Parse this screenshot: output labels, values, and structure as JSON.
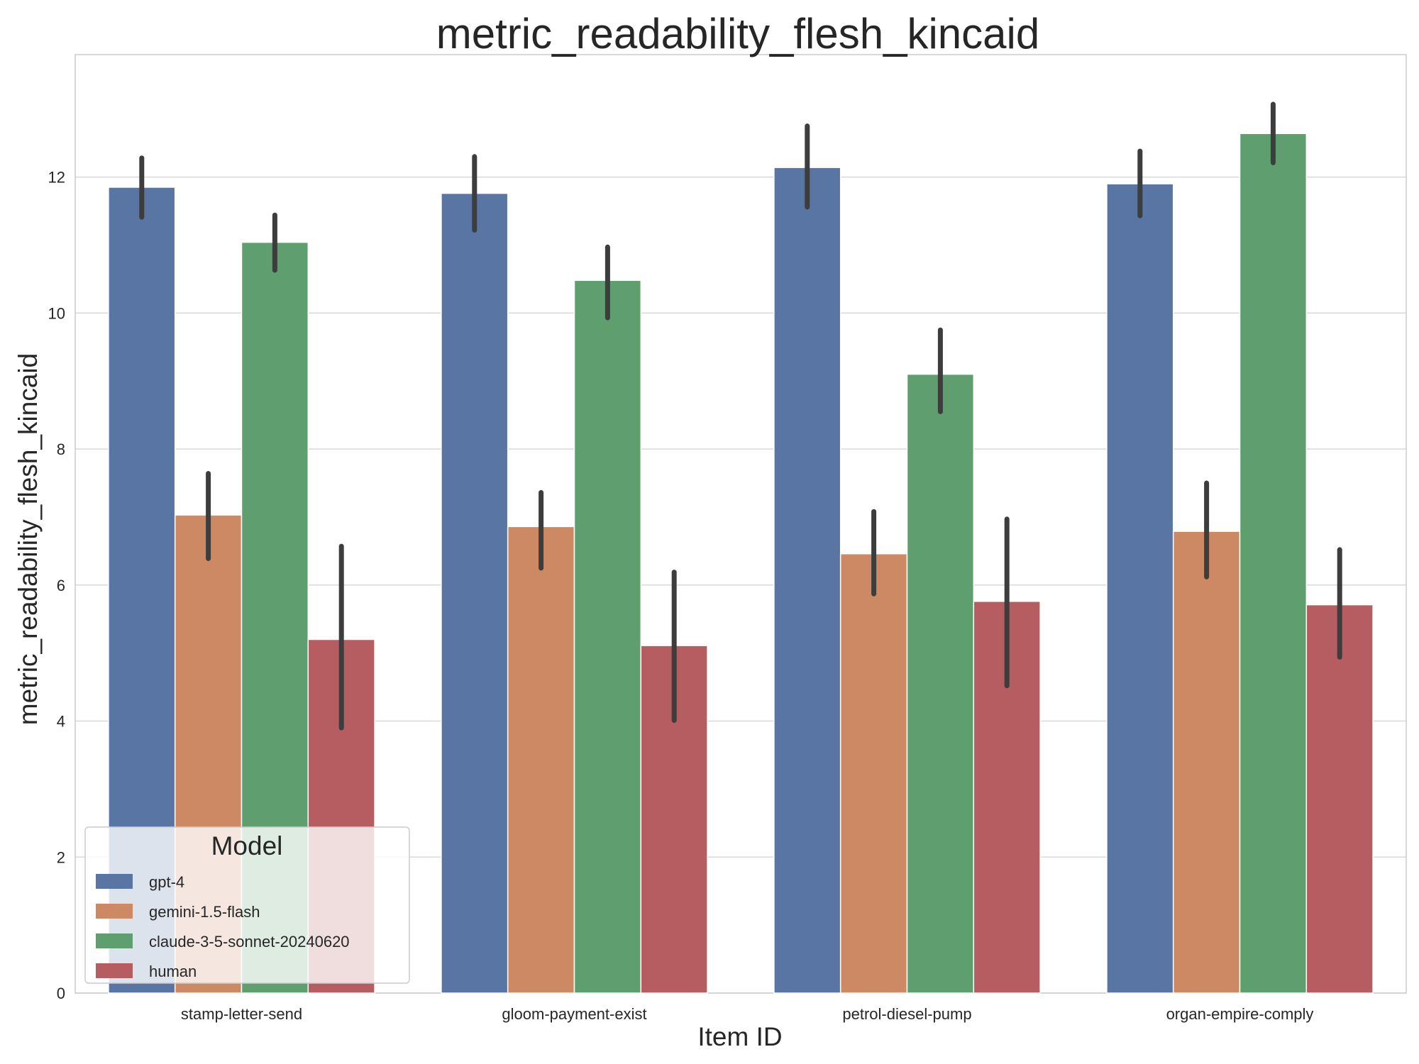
{
  "chart_data": {
    "type": "bar",
    "title": "metric_readability_flesh_kincaid",
    "xlabel": "Item ID",
    "ylabel": "metric_readability_flesh_kincaid",
    "ylim": [
      0,
      13.8
    ],
    "yticks": [
      0,
      2,
      4,
      6,
      8,
      10,
      12
    ],
    "grid": true,
    "categories": [
      "stamp-letter-send",
      "gloom-payment-exist",
      "petrol-diesel-pump",
      "organ-empire-comply"
    ],
    "legend": {
      "title": "Model",
      "placement": "lower-left"
    },
    "series": [
      {
        "name": "gpt-4",
        "color": "#5875a4",
        "values": [
          11.85,
          11.76,
          12.14,
          11.9
        ],
        "ci": [
          [
            11.41,
            12.28
          ],
          [
            11.22,
            12.3
          ],
          [
            11.56,
            12.75
          ],
          [
            11.43,
            12.38
          ]
        ]
      },
      {
        "name": "gemini-1.5-flash",
        "color": "#cc8963",
        "values": [
          7.03,
          6.86,
          6.46,
          6.79
        ],
        "ci": [
          [
            6.39,
            7.64
          ],
          [
            6.25,
            7.36
          ],
          [
            5.87,
            7.08
          ],
          [
            6.12,
            7.5
          ]
        ]
      },
      {
        "name": "claude-3-5-sonnet-20240620",
        "color": "#5f9e6e",
        "values": [
          11.04,
          10.48,
          9.1,
          12.64
        ],
        "ci": [
          [
            10.63,
            11.44
          ],
          [
            9.93,
            10.97
          ],
          [
            8.55,
            9.75
          ],
          [
            12.21,
            13.07
          ]
        ]
      },
      {
        "name": "human",
        "color": "#b55d60",
        "values": [
          5.2,
          5.11,
          5.76,
          5.71
        ],
        "ci": [
          [
            3.9,
            6.57
          ],
          [
            4.01,
            6.19
          ],
          [
            4.52,
            6.97
          ],
          [
            4.94,
            6.52
          ]
        ]
      }
    ]
  }
}
